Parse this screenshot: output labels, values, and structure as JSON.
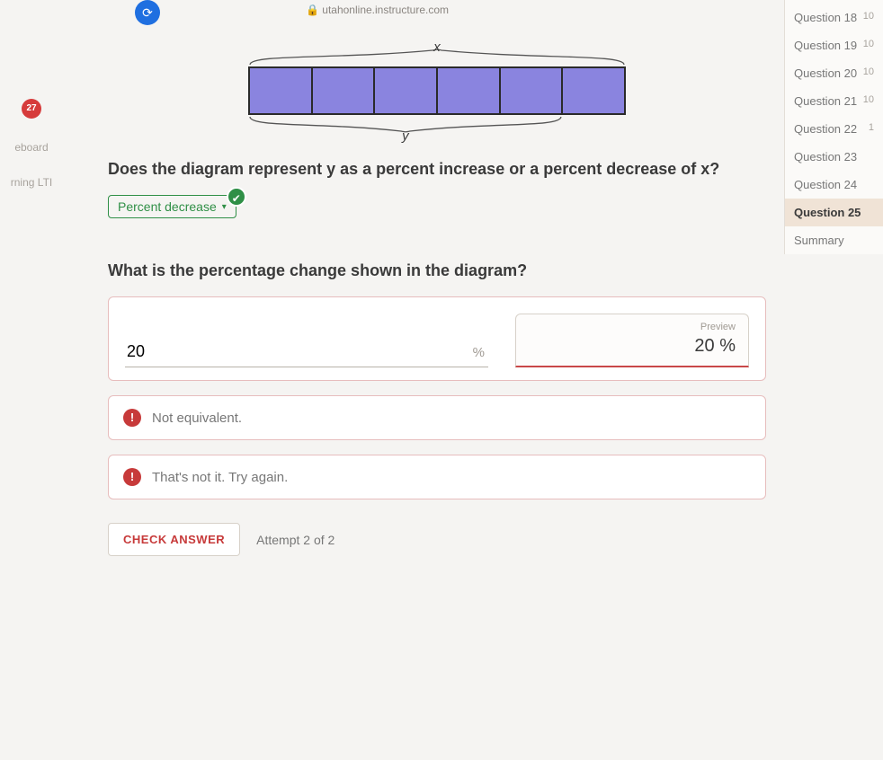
{
  "url": "utahonline.instructure.com",
  "left_nav": {
    "badge": "27",
    "items": [
      "eboard",
      "rning LTI"
    ]
  },
  "diagram": {
    "top_label": "x",
    "bottom_label": "y",
    "segments": 6,
    "seg_color": "#8a84df",
    "border_color": "#2a2a2a"
  },
  "q1": {
    "prompt": "Does the diagram represent y as a percent increase or a percent decrease of x?",
    "selected": "Percent decrease",
    "correct": true
  },
  "q2": {
    "prompt": "What is the percentage change shown in the diagram?",
    "input_value": "20",
    "suffix": "%",
    "preview_label": "Preview",
    "preview_value": "20 %"
  },
  "feedback": [
    "Not equivalent.",
    "That's not it. Try again."
  ],
  "check": {
    "label": "CHECK ANSWER",
    "attempt": "Attempt 2 of 2"
  },
  "qnav": {
    "items": [
      {
        "label": "Question 18",
        "pts": "10"
      },
      {
        "label": "Question 19",
        "pts": "10"
      },
      {
        "label": "Question 20",
        "pts": "10"
      },
      {
        "label": "Question 21",
        "pts": "10"
      },
      {
        "label": "Question 22",
        "pts": "1"
      },
      {
        "label": "Question 23",
        "pts": ""
      },
      {
        "label": "Question 24",
        "pts": ""
      },
      {
        "label": "Question 25",
        "pts": "",
        "active": true
      },
      {
        "label": "Summary",
        "pts": ""
      }
    ]
  }
}
